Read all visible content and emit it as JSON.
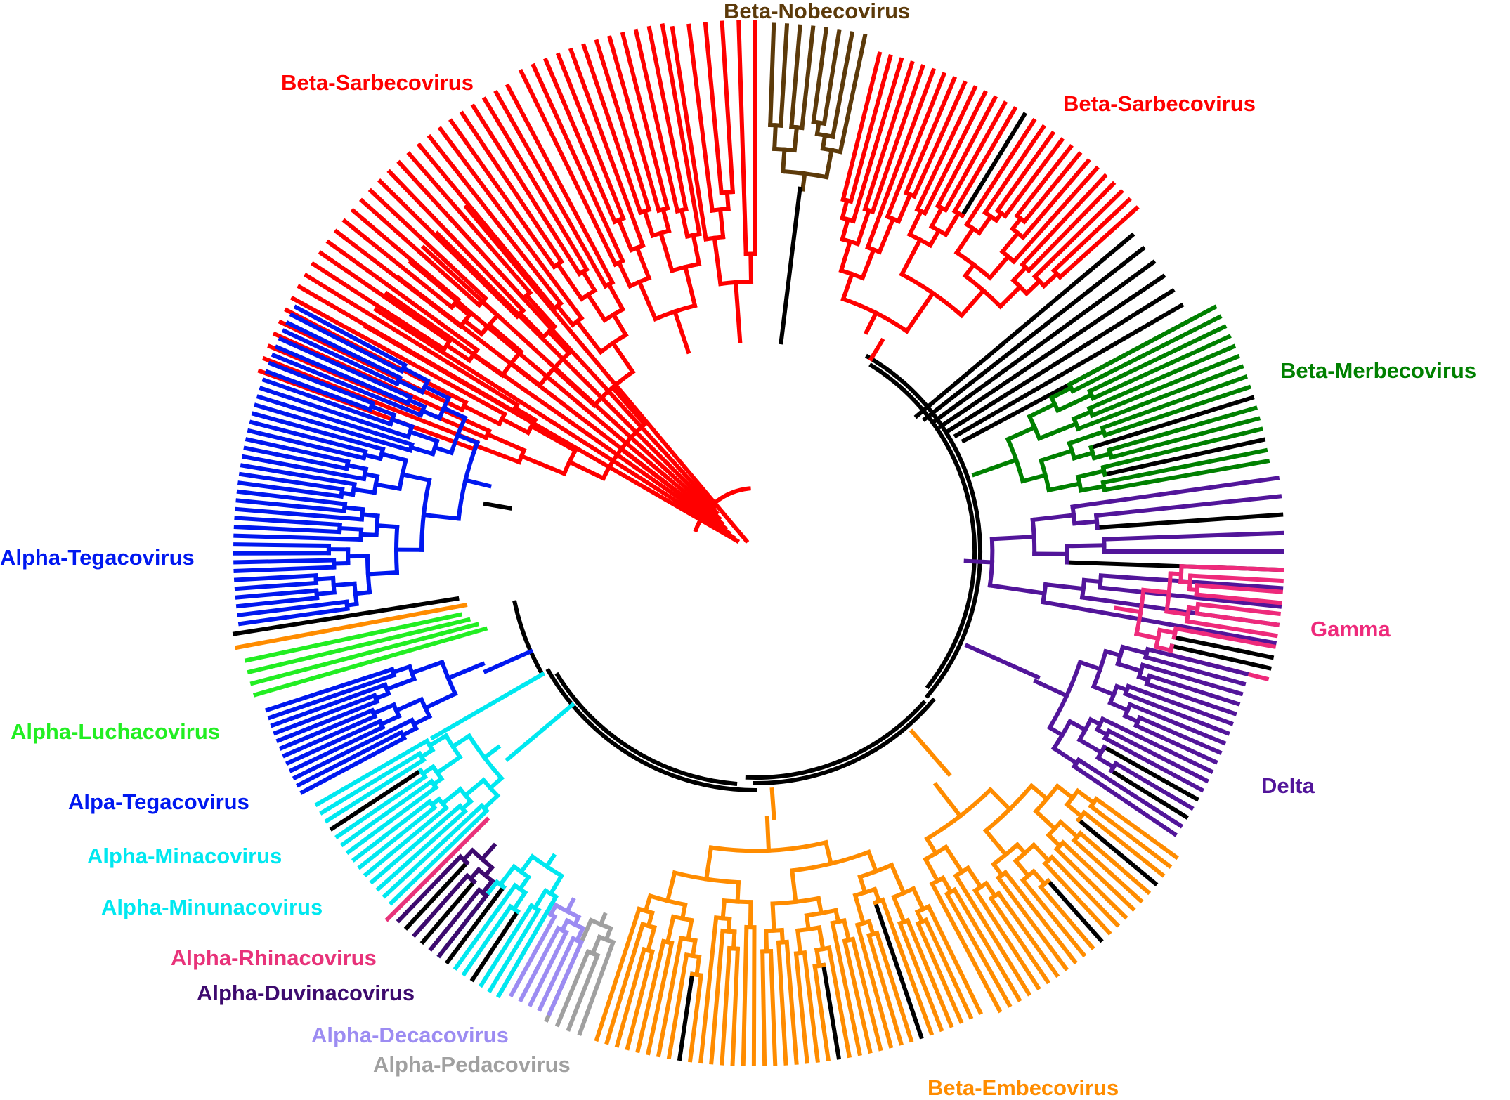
{
  "colors": {
    "sarbeco": "#ff0000",
    "nobeco": "#5c3a0a",
    "merbeco": "#008000",
    "gamma": "#ee2a7b",
    "delta": "#52159a",
    "embeco": "#ff8c00",
    "tegaco": "#0018f0",
    "luchaco": "#22ee22",
    "minaco": "#00e8f0",
    "rhinaco": "#e8337a",
    "duvinaco": "#3d0a6e",
    "decaco": "#9c8cf2",
    "pedaco": "#a0a0a0",
    "backbone": "#000000"
  },
  "clades": [
    {
      "id": "beta-nobecovirus",
      "label": "Beta-Nobecovirus",
      "color": "#5c3a0a"
    },
    {
      "id": "beta-sarbecovirus-left",
      "label": "Beta-Sarbecovirus",
      "color": "#ff0000"
    },
    {
      "id": "beta-sarbecovirus-right",
      "label": "Beta-Sarbecovirus",
      "color": "#ff0000"
    },
    {
      "id": "beta-merbecovirus",
      "label": "Beta-Merbecovirus",
      "color": "#008000"
    },
    {
      "id": "gamma",
      "label": "Gamma",
      "color": "#ee2a7b"
    },
    {
      "id": "delta",
      "label": "Delta",
      "color": "#52159a"
    },
    {
      "id": "beta-embecovirus",
      "label": "Beta-Embecovirus",
      "color": "#ff8c00"
    },
    {
      "id": "alpha-tegacovirus",
      "label": "Alpha-Tegacovirus",
      "color": "#0018f0"
    },
    {
      "id": "alpha-luchacovirus",
      "label": "Alpha-Luchacovirus",
      "color": "#22ee22"
    },
    {
      "id": "alpa-tegacovirus",
      "label": "Alpa-Tegacovirus",
      "color": "#0018f0"
    },
    {
      "id": "alpha-minacovirus",
      "label": "Alpha-Minacovirus",
      "color": "#00e8f0"
    },
    {
      "id": "alpha-minunacovirus",
      "label": "Alpha-Minunacovirus",
      "color": "#00e8f0"
    },
    {
      "id": "alpha-rhinacovirus",
      "label": "Alpha-Rhinacovirus",
      "color": "#e8337a"
    },
    {
      "id": "alpha-duvinacovirus",
      "label": "Alpha-Duvinacovirus",
      "color": "#3d0a6e"
    },
    {
      "id": "alpha-decacovirus",
      "label": "Alpha-Decacovirus",
      "color": "#9c8cf2"
    },
    {
      "id": "alpha-pedacovirus",
      "label": "Alpha-Pedacovirus",
      "color": "#a0a0a0"
    }
  ]
}
